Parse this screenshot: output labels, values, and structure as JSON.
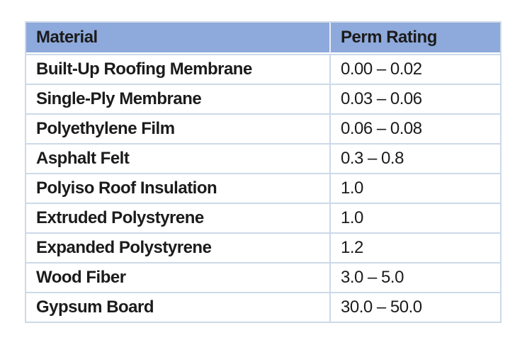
{
  "chart_data": {
    "type": "table",
    "columns": [
      "Material",
      "Perm Rating"
    ],
    "rows": [
      {
        "material": "Built-Up Roofing Membrane",
        "perm_rating": "0.00 – 0.02"
      },
      {
        "material": "Single-Ply Membrane",
        "perm_rating": "0.03 – 0.06"
      },
      {
        "material": "Polyethylene Film",
        "perm_rating": "0.06 – 0.08"
      },
      {
        "material": "Asphalt Felt",
        "perm_rating": "0.3 – 0.8"
      },
      {
        "material": "Polyiso Roof Insulation",
        "perm_rating": "1.0"
      },
      {
        "material": "Extruded Polystyrene",
        "perm_rating": "1.0"
      },
      {
        "material": "Expanded Polystyrene",
        "perm_rating": "1.2"
      },
      {
        "material": "Wood Fiber",
        "perm_rating": "3.0 – 5.0"
      },
      {
        "material": "Gypsum Board",
        "perm_rating": "30.0 – 50.0"
      }
    ]
  },
  "colors": {
    "header_bg": "#8EA9DB",
    "row_border": "#CDD9E8",
    "header_divider": "#E9EEF8",
    "text": "#1B1B1B",
    "page_bg": "#FFFFFF"
  }
}
